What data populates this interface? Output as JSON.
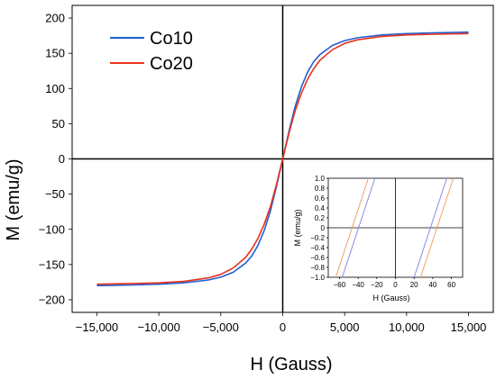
{
  "chart_data": [
    {
      "type": "line",
      "xlabel": "H  (Gauss)",
      "ylabel": "M  (emu/g)",
      "xlim": [
        -17000,
        17000
      ],
      "ylim": [
        -218,
        218
      ],
      "x_ticks": [
        -15000,
        -10000,
        -5000,
        0,
        5000,
        10000,
        15000
      ],
      "x_tick_labels": [
        "−15,000",
        "−10,000",
        "−5,000",
        "0",
        "5,000",
        "10,000",
        "15,000"
      ],
      "y_ticks": [
        -200,
        -150,
        -100,
        -50,
        0,
        50,
        100,
        150,
        200
      ],
      "y_tick_labels": [
        "−200",
        "−150",
        "−100",
        "−50",
        "0",
        "50",
        "100",
        "150",
        "200"
      ],
      "grid": false,
      "legend_position": "top-left",
      "series": [
        {
          "name": "Co10",
          "color": "#1f5fd0",
          "x": [
            -15000,
            -12000,
            -10000,
            -8000,
            -6000,
            -5000,
            -4000,
            -3000,
            -2500,
            -2000,
            -1500,
            -1000,
            -500,
            0,
            500,
            1000,
            1500,
            2000,
            2500,
            3000,
            4000,
            5000,
            6000,
            8000,
            10000,
            12000,
            15000
          ],
          "y": [
            -180,
            -179,
            -178,
            -176,
            -172,
            -168,
            -161,
            -148,
            -138,
            -123,
            -102,
            -74,
            -39,
            0,
            39,
            74,
            102,
            123,
            138,
            148,
            161,
            168,
            172,
            176,
            178,
            179,
            180
          ]
        },
        {
          "name": "Co20",
          "color": "#e8321e",
          "x": [
            -15000,
            -12000,
            -10000,
            -8000,
            -6000,
            -5000,
            -4000,
            -3000,
            -2500,
            -2000,
            -1500,
            -1000,
            -500,
            0,
            500,
            1000,
            1500,
            2000,
            2500,
            3000,
            4000,
            5000,
            6000,
            8000,
            10000,
            12000,
            15000
          ],
          "y": [
            -178,
            -177,
            -176,
            -174,
            -169,
            -164,
            -155,
            -140,
            -128,
            -113,
            -93,
            -68,
            -36,
            0,
            36,
            68,
            93,
            113,
            128,
            140,
            155,
            164,
            169,
            174,
            176,
            177,
            178
          ]
        }
      ]
    },
    {
      "type": "line",
      "xlabel": "H  (Gauss)",
      "ylabel": "M  (emu/g)",
      "xlim": [
        -72,
        72
      ],
      "ylim": [
        -1.0,
        1.0
      ],
      "x_ticks": [
        -60,
        -40,
        -20,
        0,
        20,
        40,
        60
      ],
      "x_tick_labels": [
        "−60",
        "−40",
        "−20",
        "0",
        "20",
        "40",
        "60"
      ],
      "y_ticks": [
        1.0,
        0.8,
        0.6,
        0.4,
        0.2,
        0,
        -0.2,
        -0.4,
        -0.6,
        -0.8,
        -1.0
      ],
      "y_tick_labels": [
        "1.0",
        "0.8",
        "0.6",
        "0.4",
        "0.2",
        "0",
        "−0.2",
        "−0.4",
        "−0.6",
        "−0.8",
        "−1.0"
      ],
      "grid": false,
      "series": [
        {
          "name": "Co10",
          "color": "#8a8ae6",
          "segments": [
            {
              "x": [
                -57,
                -22
              ],
              "y": [
                -1.0,
                1.0
              ]
            },
            {
              "x": [
                20,
                55
              ],
              "y": [
                -1.0,
                1.0
              ]
            }
          ]
        },
        {
          "name": "Co20",
          "color": "#f0a070",
          "segments": [
            {
              "x": [
                -64,
                -29
              ],
              "y": [
                -1.0,
                1.0
              ]
            },
            {
              "x": [
                27,
                62
              ],
              "y": [
                -1.0,
                1.0
              ]
            }
          ]
        }
      ]
    }
  ]
}
